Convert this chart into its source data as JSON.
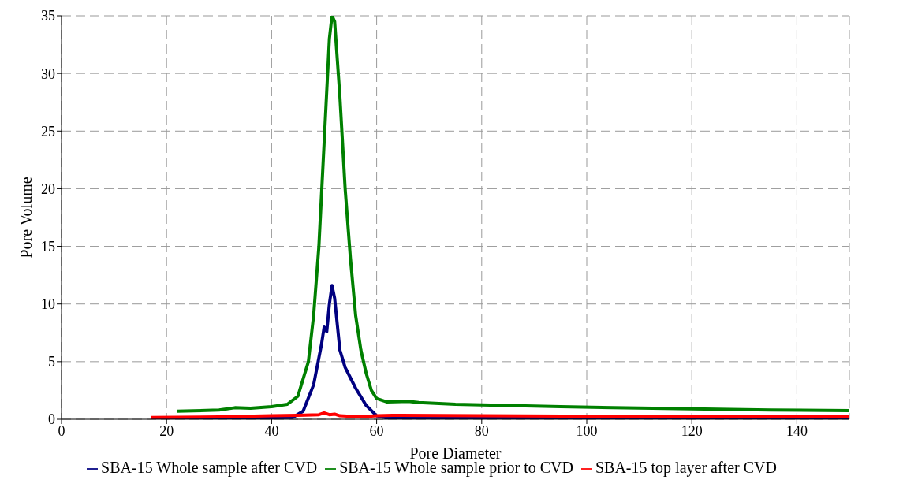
{
  "chart_data": {
    "type": "line",
    "xlabel": "Pore Diameter",
    "ylabel": "Pore Volume",
    "xlim": [
      0,
      150
    ],
    "xticks": [
      0,
      20,
      40,
      60,
      80,
      100,
      120,
      140
    ],
    "ylim": [
      0,
      35
    ],
    "yticks": [
      0,
      5,
      10,
      15,
      20,
      25,
      30,
      35
    ],
    "grid": true,
    "legend": "bottom",
    "marker": "none",
    "line_style": "solid",
    "series": [
      {
        "name": "SBA-15 Whole sample after CVD",
        "color": "#000080",
        "x": [
          17,
          30,
          44,
          46,
          48,
          49.5,
          50,
          50.5,
          51,
          51.5,
          52,
          53,
          54,
          56,
          58,
          60,
          62,
          80,
          150
        ],
        "values": [
          0.05,
          0.1,
          0.15,
          0.7,
          3,
          6.5,
          8,
          7.6,
          10,
          11.6,
          10.5,
          6,
          4.5,
          2.7,
          1.2,
          0.3,
          0.1,
          0.1,
          0.05
        ]
      },
      {
        "name": "SBA-15 Whole sample prior to CVD",
        "color": "#008000",
        "x": [
          22,
          30,
          33,
          36,
          40,
          43,
          45,
          47,
          48,
          49,
          50,
          51,
          51.5,
          52,
          53,
          54,
          55,
          56,
          57,
          58,
          59,
          60,
          62,
          66,
          68,
          75,
          85,
          95,
          105,
          120,
          135,
          150
        ],
        "values": [
          0.7,
          0.8,
          1,
          0.95,
          1.1,
          1.3,
          2,
          5,
          9,
          15,
          24,
          33,
          35,
          34.5,
          28,
          20,
          14,
          9,
          6,
          4,
          2.5,
          1.8,
          1.5,
          1.55,
          1.45,
          1.3,
          1.2,
          1.1,
          1,
          0.9,
          0.8,
          0.75
        ]
      },
      {
        "name": "SBA-15 top layer after CVD",
        "color": "#ff0000",
        "x": [
          17,
          30,
          40,
          45,
          49,
          50,
          51,
          52,
          53,
          57,
          60,
          63,
          80,
          110,
          150
        ],
        "values": [
          0.15,
          0.2,
          0.3,
          0.35,
          0.4,
          0.55,
          0.4,
          0.45,
          0.3,
          0.2,
          0.3,
          0.35,
          0.3,
          0.25,
          0.2
        ]
      }
    ]
  }
}
